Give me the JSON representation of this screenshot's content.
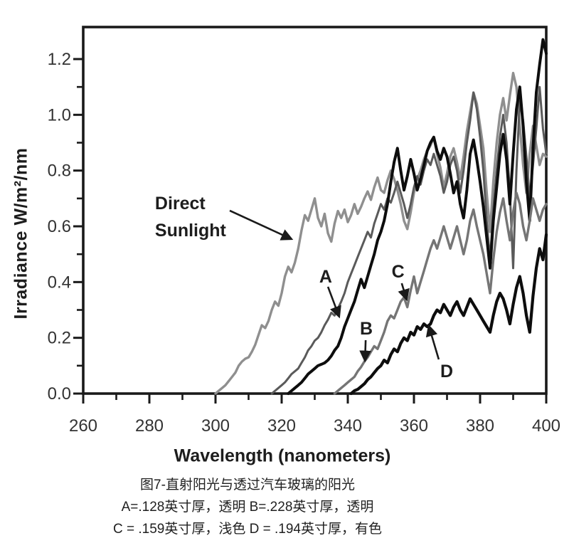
{
  "caption": {
    "line1": "图7-直射阳光与透过汽车玻璃的阳光",
    "line2": "A=.128英寸厚，透明 B=.228英寸厚，透明",
    "line3": "C = .159英寸厚，浅色 D = .194英寸厚，有色"
  },
  "chart_data": {
    "type": "line",
    "title": "",
    "xlabel": "Wavelength (nanometers)",
    "ylabel": "Irradiance W/m²/nm",
    "xlim": [
      260,
      400
    ],
    "ylim": [
      0,
      1.3
    ],
    "grid": false,
    "legend_position": "none",
    "x_ticks_major": [
      260,
      280,
      300,
      320,
      340,
      360,
      380,
      400
    ],
    "x_tick_labels": [
      "260",
      "280",
      "300",
      "320",
      "340",
      "360",
      "380",
      "400"
    ],
    "x_ticks_minor": [
      270,
      290,
      310,
      330,
      350,
      370,
      390
    ],
    "y_ticks_major": [
      0,
      0.2,
      0.4,
      0.6,
      0.8,
      1.0,
      1.2
    ],
    "y_tick_labels": [
      "0.0",
      "0.2",
      "0.4",
      "0.6",
      "0.8",
      "1.0",
      "1.2"
    ],
    "y_ticks_minor": [
      0.1,
      0.3,
      0.5,
      0.7,
      0.9,
      1.1
    ],
    "axis_color": "#1a1a1a",
    "tick_label_color": "#333333",
    "series": [
      {
        "name": "Direct Sunlight",
        "color": "#8f8f8f",
        "stroke_width": 3.4,
        "x_start": 300,
        "x_step": 1,
        "values": [
          0,
          0.01,
          0.02,
          0.03,
          0.045,
          0.06,
          0.075,
          0.1,
          0.115,
          0.125,
          0.13,
          0.15,
          0.175,
          0.21,
          0.245,
          0.235,
          0.26,
          0.3,
          0.33,
          0.315,
          0.36,
          0.42,
          0.455,
          0.435,
          0.47,
          0.52,
          0.585,
          0.64,
          0.62,
          0.66,
          0.7,
          0.63,
          0.6,
          0.645,
          0.575,
          0.545,
          0.61,
          0.655,
          0.63,
          0.66,
          0.615,
          0.64,
          0.68,
          0.645,
          0.67,
          0.7,
          0.725,
          0.695,
          0.74,
          0.775,
          0.73,
          0.72,
          0.765,
          0.8,
          0.77,
          0.73,
          0.68,
          0.62,
          0.59,
          0.65,
          0.72,
          0.77,
          0.8,
          0.84,
          0.87,
          0.89,
          0.92,
          0.86,
          0.81,
          0.74,
          0.79,
          0.85,
          0.88,
          0.83,
          0.77,
          0.85,
          0.94,
          1.01,
          1.08,
          1.04,
          0.96,
          0.88,
          0.72,
          0.58,
          0.76,
          0.9,
          1.0,
          1.06,
          0.98,
          1.07,
          1.15,
          1.1,
          0.96,
          0.82,
          0.72,
          0.86,
          0.96,
          0.89,
          0.82,
          0.86,
          0.85
        ]
      },
      {
        "name": "A (.128 in clear)",
        "color": "#5a5a5a",
        "stroke_width": 3.0,
        "x_start": 317,
        "x_step": 1,
        "values": [
          0,
          0.01,
          0.02,
          0.03,
          0.04,
          0.055,
          0.07,
          0.08,
          0.09,
          0.11,
          0.13,
          0.155,
          0.17,
          0.19,
          0.2,
          0.22,
          0.245,
          0.265,
          0.29,
          0.28,
          0.305,
          0.33,
          0.36,
          0.4,
          0.43,
          0.46,
          0.49,
          0.52,
          0.55,
          0.58,
          0.56,
          0.61,
          0.645,
          0.68,
          0.66,
          0.7,
          0.685,
          0.72,
          0.76,
          0.72,
          0.68,
          0.63,
          0.68,
          0.74,
          0.78,
          0.75,
          0.8,
          0.84,
          0.82,
          0.86,
          0.82,
          0.78,
          0.72,
          0.76,
          0.82,
          0.85,
          0.8,
          0.72,
          0.8,
          0.9,
          0.98,
          1.08,
          1.02,
          0.92,
          0.8,
          0.62,
          0.48,
          0.66,
          0.8,
          0.92,
          1.0,
          0.9,
          0.72,
          0.45,
          0.8,
          1.05,
          0.98,
          0.85,
          0.7,
          0.82,
          0.95,
          1.1,
          0.95,
          0.86
        ]
      },
      {
        "name": "B (.228 in clear)",
        "color": "#0d0d0d",
        "stroke_width": 4.0,
        "x_start": 322,
        "x_step": 1,
        "values": [
          0,
          0.01,
          0.02,
          0.03,
          0.04,
          0.055,
          0.07,
          0.08,
          0.09,
          0.1,
          0.105,
          0.11,
          0.12,
          0.135,
          0.155,
          0.17,
          0.2,
          0.24,
          0.27,
          0.3,
          0.33,
          0.37,
          0.41,
          0.38,
          0.42,
          0.46,
          0.5,
          0.55,
          0.58,
          0.62,
          0.68,
          0.76,
          0.83,
          0.88,
          0.8,
          0.73,
          0.78,
          0.84,
          0.79,
          0.73,
          0.77,
          0.82,
          0.87,
          0.9,
          0.92,
          0.87,
          0.84,
          0.88,
          0.85,
          0.79,
          0.72,
          0.76,
          0.68,
          0.63,
          0.73,
          0.86,
          0.91,
          0.84,
          0.76,
          0.67,
          0.56,
          0.45,
          0.62,
          0.74,
          0.86,
          0.93,
          0.84,
          0.68,
          0.86,
          1.02,
          1.1,
          0.96,
          0.76,
          0.62,
          0.88,
          1.08,
          1.18,
          1.27,
          1.22
        ]
      },
      {
        "name": "C (.159 in light tint)",
        "color": "#757575",
        "stroke_width": 3.4,
        "x_start": 336,
        "x_step": 1,
        "values": [
          0,
          0.01,
          0.02,
          0.03,
          0.04,
          0.05,
          0.06,
          0.08,
          0.095,
          0.115,
          0.13,
          0.15,
          0.17,
          0.16,
          0.19,
          0.22,
          0.26,
          0.28,
          0.27,
          0.3,
          0.33,
          0.345,
          0.31,
          0.37,
          0.42,
          0.36,
          0.4,
          0.44,
          0.48,
          0.52,
          0.55,
          0.52,
          0.56,
          0.6,
          0.56,
          0.52,
          0.56,
          0.6,
          0.55,
          0.5,
          0.55,
          0.62,
          0.66,
          0.6,
          0.55,
          0.5,
          0.43,
          0.36,
          0.48,
          0.58,
          0.65,
          0.7,
          0.62,
          0.55,
          0.65,
          0.72,
          0.68,
          0.6,
          0.55,
          0.62,
          0.7,
          0.66,
          0.62,
          0.66,
          0.68
        ]
      },
      {
        "name": "D (.194 in tinted)",
        "color": "#0d0d0d",
        "stroke_width": 4.2,
        "x_start": 341,
        "x_step": 1,
        "values": [
          0,
          0.01,
          0.015,
          0.025,
          0.035,
          0.05,
          0.06,
          0.075,
          0.09,
          0.1,
          0.12,
          0.11,
          0.14,
          0.16,
          0.15,
          0.18,
          0.2,
          0.19,
          0.22,
          0.21,
          0.24,
          0.23,
          0.25,
          0.24,
          0.25,
          0.28,
          0.3,
          0.29,
          0.32,
          0.3,
          0.28,
          0.31,
          0.33,
          0.3,
          0.28,
          0.31,
          0.34,
          0.32,
          0.3,
          0.28,
          0.26,
          0.24,
          0.22,
          0.28,
          0.33,
          0.36,
          0.34,
          0.3,
          0.25,
          0.32,
          0.38,
          0.42,
          0.36,
          0.28,
          0.22,
          0.35,
          0.45,
          0.52,
          0.48,
          0.57
        ]
      }
    ],
    "annotations": [
      {
        "key": "direct-sunlight",
        "lines": [
          "Direct",
          "Sunlight"
        ],
        "anchor": "start",
        "nm": 281.7,
        "v": 0.7228,
        "arrow": {
          "from": [
            304.3,
            0.6563
          ],
          "to": [
            323.0,
            0.5542
          ]
        }
      },
      {
        "key": "label-a",
        "lines": [
          "A"
        ],
        "anchor": "middle",
        "nm": 333.3,
        "v": 0.4214,
        "arrow": {
          "from": [
            334.0,
            0.3831
          ],
          "to": [
            337.4,
            0.2758
          ]
        }
      },
      {
        "key": "label-b",
        "lines": [
          "B"
        ],
        "anchor": "middle",
        "nm": 345.6,
        "v": 0.235,
        "arrow": {
          "from": [
            345.4,
            0.1915
          ],
          "to": [
            345.2,
            0.1175
          ]
        }
      },
      {
        "key": "label-c",
        "lines": [
          "C"
        ],
        "anchor": "middle",
        "nm": 355.2,
        "v": 0.4393,
        "arrow": {
          "from": [
            356.3,
            0.3958
          ],
          "to": [
            357.8,
            0.3371
          ]
        }
      },
      {
        "key": "label-d",
        "lines": [
          "D"
        ],
        "anchor": "middle",
        "nm": 369.9,
        "v": 0.0817,
        "arrow": {
          "from": [
            367.5,
            0.1226
          ],
          "to": [
            364.5,
            0.2426
          ]
        }
      }
    ]
  }
}
